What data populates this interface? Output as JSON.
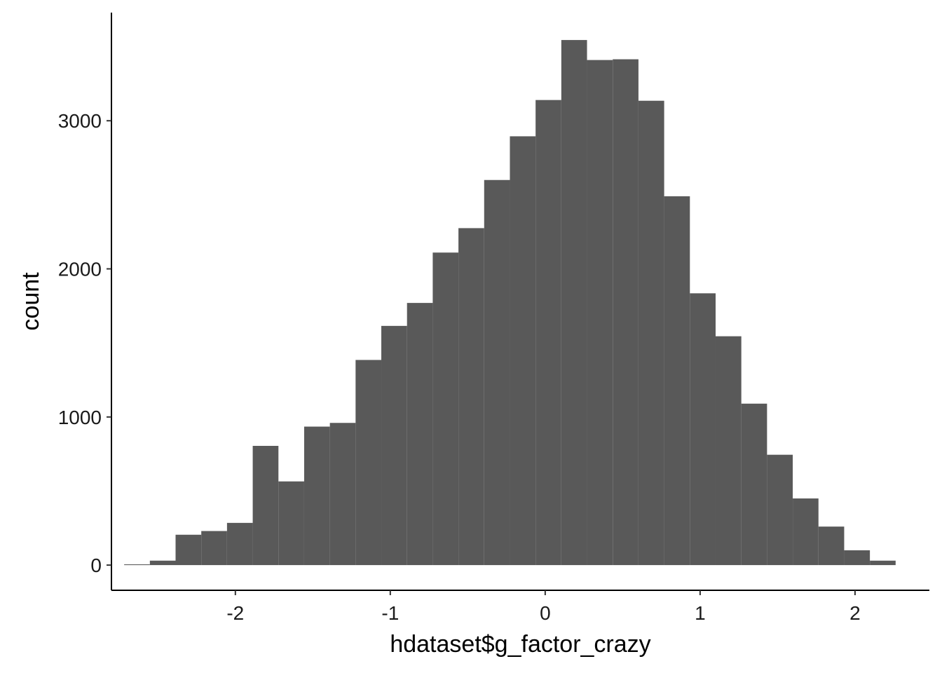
{
  "chart_data": {
    "type": "bar",
    "subtype": "histogram",
    "title": "",
    "xlabel": "hdataset$g_factor_crazy",
    "ylabel": "count",
    "xlim": [
      -2.8,
      2.48
    ],
    "ylim": [
      -170,
      3730
    ],
    "x_ticks": [
      -2,
      -1,
      0,
      1,
      2
    ],
    "x_tick_labels": [
      "-2",
      "-1",
      "0",
      "1",
      "2"
    ],
    "y_ticks": [
      0,
      1000,
      2000,
      3000
    ],
    "y_tick_labels": [
      "0",
      "1000",
      "2000",
      "3000"
    ],
    "grid": false,
    "legend": "none",
    "bar_color": "#595959",
    "bins": [
      {
        "x_min": -2.718,
        "x_max": -2.552,
        "count": 5
      },
      {
        "x_min": -2.552,
        "x_max": -2.386,
        "count": 30
      },
      {
        "x_min": -2.386,
        "x_max": -2.22,
        "count": 205
      },
      {
        "x_min": -2.22,
        "x_max": -2.054,
        "count": 230
      },
      {
        "x_min": -2.054,
        "x_max": -1.888,
        "count": 285
      },
      {
        "x_min": -1.888,
        "x_max": -1.722,
        "count": 805
      },
      {
        "x_min": -1.722,
        "x_max": -1.556,
        "count": 565
      },
      {
        "x_min": -1.556,
        "x_max": -1.39,
        "count": 935
      },
      {
        "x_min": -1.39,
        "x_max": -1.224,
        "count": 960
      },
      {
        "x_min": -1.224,
        "x_max": -1.058,
        "count": 1385
      },
      {
        "x_min": -1.058,
        "x_max": -0.892,
        "count": 1615
      },
      {
        "x_min": -0.892,
        "x_max": -0.726,
        "count": 1770
      },
      {
        "x_min": -0.726,
        "x_max": -0.56,
        "count": 2110
      },
      {
        "x_min": -0.56,
        "x_max": -0.394,
        "count": 2275
      },
      {
        "x_min": -0.394,
        "x_max": -0.228,
        "count": 2600
      },
      {
        "x_min": -0.228,
        "x_max": -0.062,
        "count": 2895
      },
      {
        "x_min": -0.062,
        "x_max": 0.104,
        "count": 3140
      },
      {
        "x_min": 0.104,
        "x_max": 0.27,
        "count": 3545
      },
      {
        "x_min": 0.27,
        "x_max": 0.436,
        "count": 3410
      },
      {
        "x_min": 0.436,
        "x_max": 0.602,
        "count": 3415
      },
      {
        "x_min": 0.602,
        "x_max": 0.768,
        "count": 3135
      },
      {
        "x_min": 0.768,
        "x_max": 0.934,
        "count": 2490
      },
      {
        "x_min": 0.934,
        "x_max": 1.1,
        "count": 1835
      },
      {
        "x_min": 1.1,
        "x_max": 1.266,
        "count": 1545
      },
      {
        "x_min": 1.266,
        "x_max": 1.432,
        "count": 1090
      },
      {
        "x_min": 1.432,
        "x_max": 1.598,
        "count": 745
      },
      {
        "x_min": 1.598,
        "x_max": 1.764,
        "count": 450
      },
      {
        "x_min": 1.764,
        "x_max": 1.93,
        "count": 260
      },
      {
        "x_min": 1.93,
        "x_max": 2.096,
        "count": 100
      },
      {
        "x_min": 2.096,
        "x_max": 2.262,
        "count": 30
      }
    ]
  }
}
